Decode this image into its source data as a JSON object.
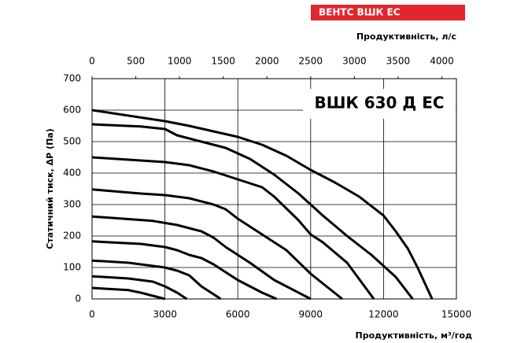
{
  "chart_data": {
    "type": "line",
    "header": "ВЕНТС ВШК ЕС",
    "title": "ВШК 630 Д ЕС",
    "x2_label": "Продуктивність, л/с",
    "x_label": "Продуктивність, м³/год",
    "y_label": "Статичний тиск, ΔР (Па)",
    "xlim": [
      0,
      15000
    ],
    "xticks": [
      0,
      3000,
      6000,
      9000,
      12000,
      15000
    ],
    "x2lim": [
      0,
      4166.7
    ],
    "x2ticks": [
      0,
      500,
      1000,
      1500,
      2000,
      2500,
      3000,
      3500,
      4000
    ],
    "ylim": [
      0,
      700
    ],
    "yticks": [
      0,
      100,
      200,
      300,
      400,
      500,
      600,
      700
    ],
    "grid": true,
    "color": "#000000",
    "series": [
      {
        "x": [
          0,
          3000,
          4000,
          6000,
          7000,
          8000,
          9000,
          10000,
          11000,
          12000,
          12500,
          13000,
          13400,
          13700,
          14000
        ],
        "values": [
          600,
          565,
          550,
          515,
          490,
          455,
          410,
          370,
          325,
          265,
          215,
          160,
          100,
          50,
          0
        ]
      },
      {
        "x": [
          0,
          2000,
          3000,
          3500,
          4500,
          5500,
          6500,
          7500,
          8500,
          9500,
          10500,
          11500,
          12500,
          13200
        ],
        "values": [
          555,
          548,
          540,
          520,
          500,
          480,
          445,
          395,
          335,
          265,
          200,
          140,
          70,
          0
        ]
      },
      {
        "x": [
          0,
          2000,
          3000,
          4000,
          5000,
          6000,
          7000,
          7500,
          8500,
          9000,
          9500,
          10500,
          11600
        ],
        "values": [
          450,
          440,
          435,
          425,
          405,
          380,
          355,
          325,
          250,
          205,
          180,
          115,
          0
        ]
      },
      {
        "x": [
          0,
          2000,
          3000,
          4000,
          5000,
          5500,
          6000,
          7000,
          8000,
          9000,
          10300
        ],
        "values": [
          348,
          335,
          330,
          320,
          300,
          285,
          255,
          205,
          155,
          80,
          0
        ]
      },
      {
        "x": [
          0,
          2500,
          3500,
          4500,
          5000,
          5500,
          6500,
          7500,
          9000
        ],
        "values": [
          262,
          248,
          235,
          215,
          195,
          165,
          115,
          60,
          0
        ]
      },
      {
        "x": [
          0,
          2000,
          3000,
          3500,
          4000,
          4500,
          5000,
          6000,
          7000,
          7600
        ],
        "values": [
          183,
          175,
          165,
          155,
          140,
          130,
          110,
          60,
          20,
          0
        ]
      },
      {
        "x": [
          0,
          1500,
          2500,
          3000,
          3500,
          4000,
          4500,
          5300
        ],
        "values": [
          122,
          115,
          105,
          100,
          90,
          75,
          40,
          0
        ]
      },
      {
        "x": [
          0,
          1500,
          2500,
          3000,
          3500,
          3900
        ],
        "values": [
          72,
          65,
          55,
          40,
          20,
          0
        ]
      },
      {
        "x": [
          0,
          1500,
          2000,
          2500,
          3000
        ],
        "values": [
          35,
          28,
          20,
          10,
          0
        ]
      }
    ]
  }
}
